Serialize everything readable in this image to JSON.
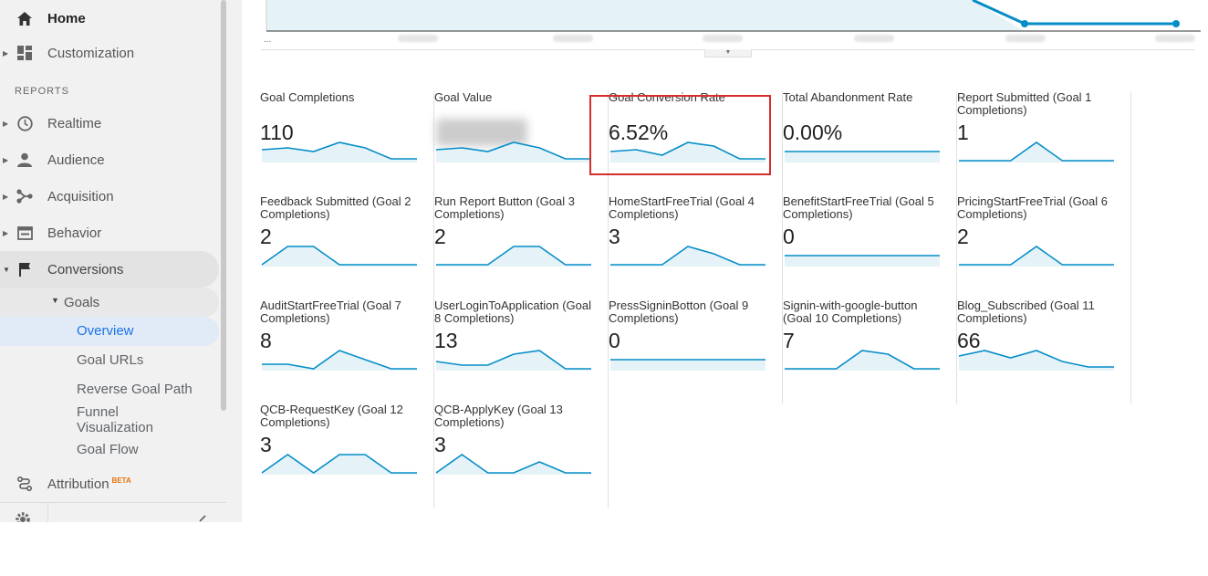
{
  "sidebar": {
    "home": "Home",
    "customization": "Customization",
    "section_reports": "REPORTS",
    "realtime": "Realtime",
    "audience": "Audience",
    "acquisition": "Acquisition",
    "behavior": "Behavior",
    "conversions": "Conversions",
    "goals": "Goals",
    "overview": "Overview",
    "goal_urls": "Goal URLs",
    "reverse_goal_path": "Reverse Goal Path",
    "funnel_visualization_1": "Funnel",
    "funnel_visualization_2": "Visualization",
    "goal_flow": "Goal Flow",
    "attribution": "Attribution",
    "attribution_badge": "BETA"
  },
  "chart": {
    "axis_ellipsis": "..."
  },
  "colors": {
    "line": "#058dc7",
    "fill": "#e5f3f9",
    "highlight": "#d62d2d",
    "selected_text": "#1a73e8"
  },
  "metrics": [
    {
      "name": "Goal Completions",
      "value": "110",
      "spark": [
        0.6,
        0.7,
        0.5,
        1.0,
        0.7,
        0.1,
        0.1
      ],
      "blurred": false
    },
    {
      "name": "Goal Value",
      "value": "",
      "spark": [
        0.6,
        0.7,
        0.5,
        1.0,
        0.7,
        0.1,
        0.1
      ],
      "blurred": true
    },
    {
      "name": "Goal Conversion Rate",
      "value": "6.52%",
      "spark": [
        0.5,
        0.6,
        0.3,
        1.0,
        0.8,
        0.1,
        0.1
      ],
      "blurred": false
    },
    {
      "name": "Total Abandonment Rate",
      "value": "0.00%",
      "spark": [
        0.5,
        0.5,
        0.5,
        0.5,
        0.5,
        0.5,
        0.5
      ],
      "blurred": false
    },
    {
      "name": "Report Submitted (Goal 1 Completions)",
      "value": "1",
      "spark": [
        0,
        0,
        0,
        1,
        0,
        0,
        0
      ],
      "blurred": false
    },
    {
      "name": "Feedback Submitted (Goal 2 Completions)",
      "value": "2",
      "spark": [
        0,
        1,
        1,
        0,
        0,
        0,
        0
      ],
      "blurred": false
    },
    {
      "name": "Run Report Button (Goal 3 Completions)",
      "value": "2",
      "spark": [
        0,
        0,
        0,
        1,
        1,
        0,
        0
      ],
      "blurred": false
    },
    {
      "name": "HomeStartFreeTrial (Goal 4 Completions)",
      "value": "3",
      "spark": [
        0,
        0,
        0,
        1,
        0.6,
        0,
        0
      ],
      "blurred": false
    },
    {
      "name": "BenefitStartFreeTrial (Goal 5 Completions)",
      "value": "0",
      "spark": [
        0.5,
        0.5,
        0.5,
        0.5,
        0.5,
        0.5,
        0.5
      ],
      "blurred": false
    },
    {
      "name": "PricingStartFreeTrial (Goal 6 Completions)",
      "value": "2",
      "spark": [
        0,
        0,
        0,
        1,
        0,
        0,
        0
      ],
      "blurred": false
    },
    {
      "name": "AuditStartFreeTrial (Goal 7 Completions)",
      "value": "8",
      "spark": [
        0.25,
        0.25,
        0,
        1,
        0.5,
        0,
        0
      ],
      "blurred": false
    },
    {
      "name": "UserLoginToApplication (Goal 8 Completions)",
      "value": "13",
      "spark": [
        0.4,
        0.2,
        0.2,
        0.8,
        1,
        0,
        0
      ],
      "blurred": false
    },
    {
      "name": "PressSigninBotton (Goal 9 Completions)",
      "value": "0",
      "spark": [
        0.5,
        0.5,
        0.5,
        0.5,
        0.5,
        0.5,
        0.5
      ],
      "blurred": false
    },
    {
      "name": "Signin-with-google-button (Goal 10 Completions)",
      "value": "7",
      "spark": [
        0,
        0,
        0,
        1,
        0.8,
        0,
        0
      ],
      "blurred": false
    },
    {
      "name": "Blog_Subscribed (Goal 11 Completions)",
      "value": "66",
      "spark": [
        0.7,
        1,
        0.6,
        1,
        0.4,
        0.1,
        0.1
      ],
      "blurred": false
    },
    {
      "name": "QCB-RequestKey (Goal 12 Completions)",
      "value": "3",
      "spark": [
        0,
        1,
        0,
        1,
        1,
        0,
        0
      ],
      "blurred": false
    },
    {
      "name": "QCB-ApplyKey (Goal 13 Completions)",
      "value": "3",
      "spark": [
        0,
        1,
        0,
        0,
        0.6,
        0,
        0
      ],
      "blurred": false
    }
  ]
}
